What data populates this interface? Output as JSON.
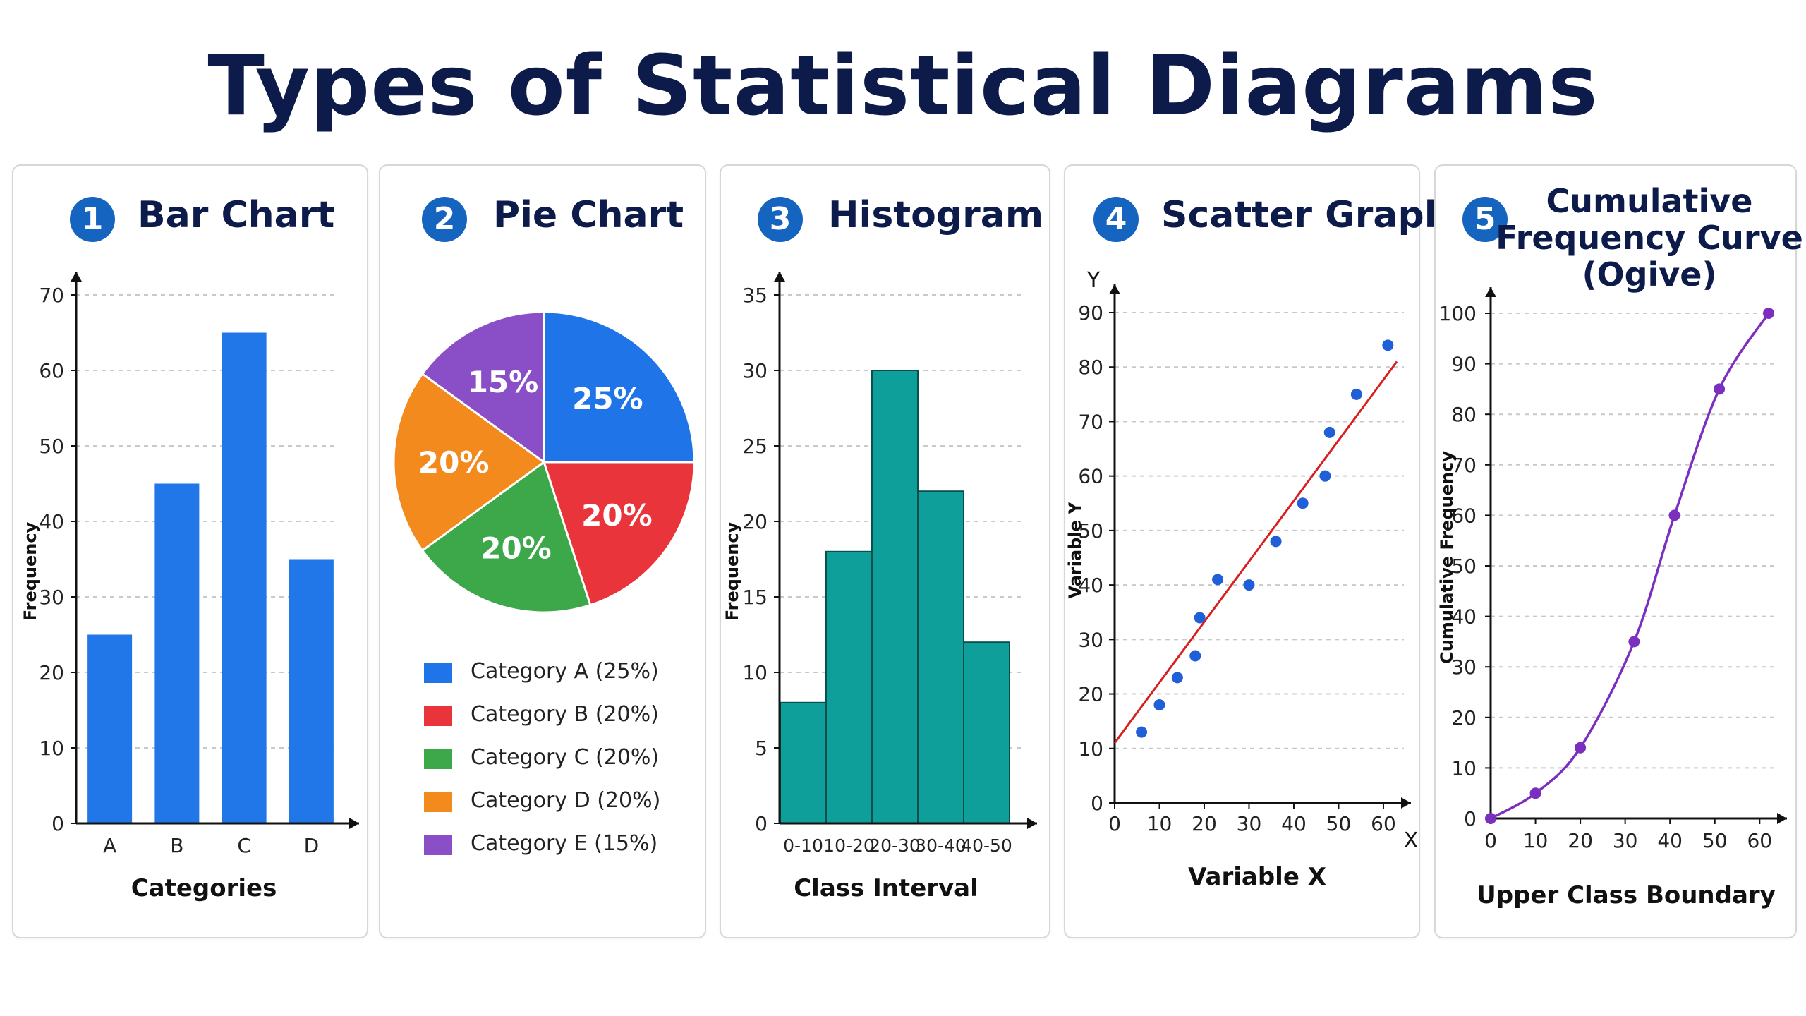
{
  "title": "Types of Statistical Diagrams",
  "colors": {
    "title": "#0d1b4b",
    "badge": "#1565c0",
    "bar": "#2277e8",
    "histogram": "#0e9f9b",
    "scatter_points": "#1f60d8",
    "trend_line": "#d81f1f",
    "ogive": "#7b2fbf"
  },
  "panels": [
    {
      "number": "1",
      "title": "Bar Chart"
    },
    {
      "number": "2",
      "title": "Pie Chart"
    },
    {
      "number": "3",
      "title": "Histogram"
    },
    {
      "number": "4",
      "title": "Scatter Graph"
    },
    {
      "number": "5",
      "title_lines": [
        "Cumulative",
        "Frequency Curve",
        "(Ogive)"
      ]
    }
  ],
  "chart_data": [
    {
      "type": "bar",
      "title": "Bar Chart",
      "categories": [
        "A",
        "B",
        "C",
        "D"
      ],
      "values": [
        25,
        45,
        65,
        35
      ],
      "xlabel": "Categories",
      "ylabel": "Frequency",
      "ylim": [
        0,
        70
      ],
      "yticks": [
        0,
        10,
        20,
        30,
        40,
        50,
        60,
        70
      ],
      "grid": true
    },
    {
      "type": "pie",
      "title": "Pie Chart",
      "slices": [
        {
          "label": "Category A",
          "value": 25,
          "display": "25%",
          "legend": "Category A (25%)",
          "color": "#1f74e8"
        },
        {
          "label": "Category B",
          "value": 20,
          "display": "20%",
          "legend": "Category B (20%)",
          "color": "#e8343a"
        },
        {
          "label": "Category C",
          "value": 20,
          "display": "20%",
          "legend": "Category C (20%)",
          "color": "#3ca84a"
        },
        {
          "label": "Category D",
          "value": 20,
          "display": "20%",
          "legend": "Category D (20%)",
          "color": "#f28a1e"
        },
        {
          "label": "Category E",
          "value": 15,
          "display": "15%",
          "legend": "Category E (15%)",
          "color": "#8a4fc7"
        }
      ],
      "legend_position": "bottom"
    },
    {
      "type": "bar",
      "subtype": "histogram",
      "title": "Histogram",
      "categories": [
        "0-10",
        "10-20",
        "20-30",
        "30-40",
        "40-50"
      ],
      "values": [
        8,
        18,
        30,
        22,
        12
      ],
      "xlabel": "Class Interval",
      "ylabel": "Frequency",
      "ylim": [
        0,
        35
      ],
      "yticks": [
        0,
        5,
        10,
        15,
        20,
        25,
        30,
        35
      ],
      "grid": true
    },
    {
      "type": "scatter",
      "title": "Scatter Graph",
      "x": [
        6,
        10,
        14,
        18,
        19,
        23,
        30,
        36,
        42,
        47,
        48,
        54,
        61
      ],
      "y": [
        13,
        18,
        23,
        27,
        34,
        41,
        40,
        48,
        55,
        60,
        68,
        75,
        84
      ],
      "trend_line": {
        "x": [
          0,
          63
        ],
        "y": [
          11,
          81
        ]
      },
      "xlabel": "Variable X",
      "ylabel": "Variable Y",
      "x_axis_letter": "X",
      "y_axis_letter": "Y",
      "xlim": [
        0,
        63
      ],
      "ylim": [
        0,
        90
      ],
      "xticks": [
        0,
        10,
        20,
        30,
        40,
        50,
        60
      ],
      "yticks": [
        0,
        10,
        20,
        30,
        40,
        50,
        60,
        70,
        80,
        90
      ],
      "grid": true
    },
    {
      "type": "line",
      "title": "Cumulative Frequency Curve (Ogive)",
      "x": [
        0,
        10,
        20,
        32,
        41,
        51,
        62
      ],
      "y": [
        0,
        5,
        14,
        35,
        60,
        85,
        100
      ],
      "xlabel": "Upper Class Boundary",
      "ylabel": "Cumulative Frequency",
      "xlim": [
        0,
        62
      ],
      "ylim": [
        0,
        100
      ],
      "xticks": [
        0,
        10,
        20,
        30,
        40,
        50,
        60
      ],
      "yticks": [
        0,
        10,
        20,
        30,
        40,
        50,
        60,
        70,
        80,
        90,
        100
      ],
      "grid": true
    }
  ]
}
